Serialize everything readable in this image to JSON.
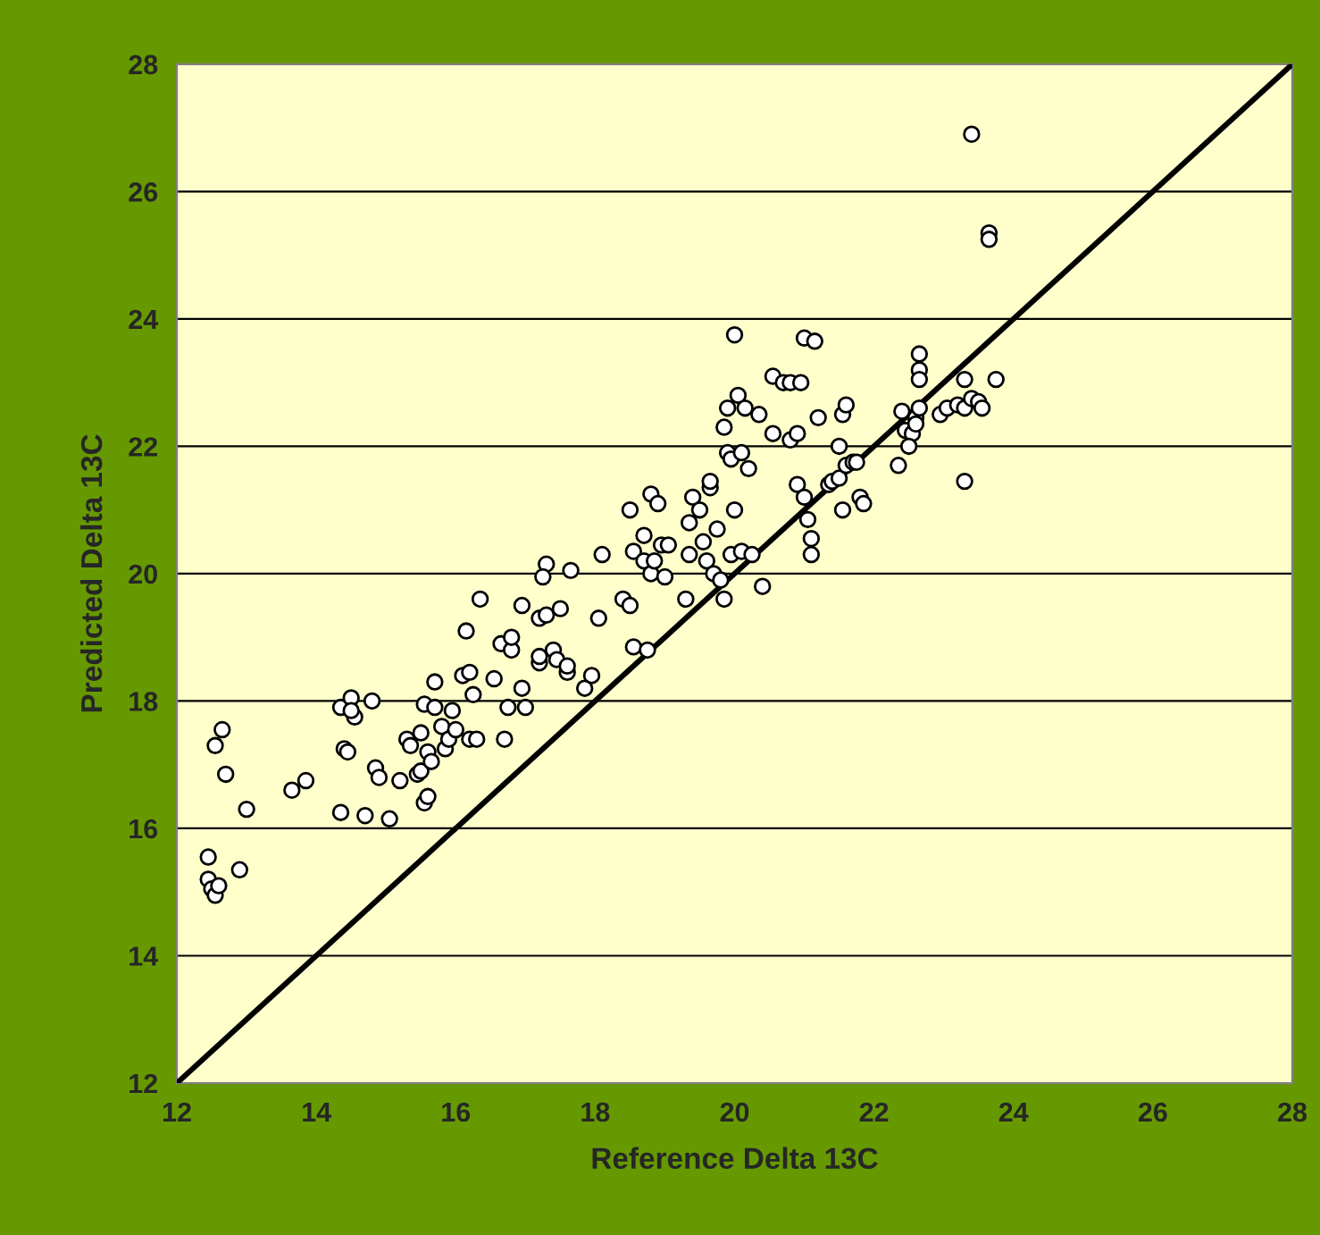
{
  "chart_data": {
    "type": "scatter",
    "xlabel": "Reference Delta 13C",
    "ylabel": "Predicted Delta 13C",
    "xlim": [
      12,
      28
    ],
    "ylim": [
      12,
      28
    ],
    "xticks": [
      12,
      14,
      16,
      18,
      20,
      22,
      24,
      26,
      28
    ],
    "yticks": [
      12,
      14,
      16,
      18,
      20,
      22,
      24,
      26,
      28
    ],
    "grid": "y",
    "series": [
      {
        "marker": "circle",
        "color": "#ffffff",
        "x": [
          12.45,
          12.45,
          12.5,
          12.55,
          12.6,
          12.9,
          12.55,
          12.65,
          12.7,
          13.0,
          13.65,
          13.85,
          14.35,
          14.4,
          14.45,
          14.5,
          14.55,
          14.5,
          14.35,
          14.7,
          14.8,
          14.85,
          14.9,
          15.05,
          15.2,
          15.3,
          15.35,
          15.45,
          15.5,
          15.5,
          15.55,
          15.6,
          15.6,
          15.55,
          15.65,
          15.7,
          15.7,
          15.8,
          15.85,
          15.9,
          15.95,
          16.0,
          16.1,
          16.2,
          16.2,
          16.3,
          16.25,
          16.35,
          16.15,
          16.55,
          16.65,
          16.7,
          16.75,
          16.8,
          16.8,
          16.95,
          16.95,
          17.0,
          17.2,
          17.2,
          17.2,
          17.3,
          17.3,
          17.25,
          17.4,
          17.45,
          17.5,
          17.6,
          17.6,
          17.65,
          17.85,
          17.95,
          18.05,
          18.1,
          18.4,
          18.5,
          18.55,
          18.55,
          18.5,
          18.7,
          18.7,
          18.75,
          18.8,
          18.85,
          18.8,
          18.9,
          18.95,
          19.0,
          19.05,
          19.3,
          19.35,
          19.35,
          19.4,
          19.5,
          19.55,
          19.6,
          19.65,
          19.65,
          19.7,
          19.75,
          19.8,
          19.85,
          19.85,
          19.9,
          19.9,
          19.95,
          19.95,
          20.0,
          20.0,
          20.05,
          20.1,
          20.15,
          20.1,
          20.2,
          20.25,
          20.35,
          20.4,
          20.55,
          20.55,
          20.7,
          20.8,
          20.8,
          20.9,
          20.9,
          20.95,
          21.0,
          21.0,
          21.05,
          21.1,
          21.1,
          21.15,
          21.2,
          21.35,
          21.4,
          21.5,
          21.5,
          21.55,
          21.6,
          21.6,
          21.55,
          21.7,
          21.8,
          21.85,
          21.75,
          22.35,
          22.4,
          22.45,
          22.55,
          22.5,
          22.65,
          22.65,
          22.65,
          22.6,
          22.65,
          22.6,
          22.95,
          23.05,
          23.2,
          23.3,
          23.3,
          23.3,
          23.4,
          23.5,
          23.65,
          23.65,
          23.75,
          23.4,
          23.55
        ],
        "values": [
          15.55,
          15.2,
          15.05,
          14.95,
          15.1,
          15.35,
          17.3,
          17.55,
          16.85,
          16.3,
          16.6,
          16.75,
          17.9,
          17.25,
          17.2,
          18.05,
          17.75,
          17.85,
          16.25,
          16.2,
          18.0,
          16.95,
          16.8,
          16.15,
          16.75,
          17.4,
          17.3,
          16.85,
          17.5,
          16.9,
          16.4,
          16.5,
          17.2,
          17.95,
          17.05,
          18.3,
          17.9,
          17.6,
          17.25,
          17.4,
          17.85,
          17.55,
          18.4,
          18.45,
          17.4,
          17.4,
          18.1,
          19.6,
          19.1,
          18.35,
          18.9,
          17.4,
          17.9,
          18.8,
          19.0,
          19.5,
          18.2,
          17.9,
          18.6,
          18.7,
          19.3,
          19.35,
          20.15,
          19.95,
          18.8,
          18.65,
          19.45,
          18.45,
          18.55,
          20.05,
          18.2,
          18.4,
          19.3,
          20.3,
          19.6,
          19.5,
          18.85,
          20.35,
          21.0,
          20.2,
          20.6,
          18.8,
          20.0,
          20.2,
          21.25,
          21.1,
          20.45,
          19.95,
          20.45,
          19.6,
          20.3,
          20.8,
          21.2,
          21.0,
          20.5,
          20.2,
          21.35,
          21.45,
          20.0,
          20.7,
          19.9,
          19.6,
          22.3,
          21.9,
          22.6,
          20.3,
          21.8,
          23.75,
          21.0,
          22.8,
          20.35,
          22.6,
          21.9,
          21.65,
          20.3,
          22.5,
          19.8,
          23.1,
          22.2,
          23.0,
          23.0,
          22.1,
          22.2,
          21.4,
          23.0,
          21.2,
          23.7,
          20.85,
          20.55,
          20.3,
          23.65,
          22.45,
          21.4,
          21.45,
          21.5,
          22.0,
          22.5,
          22.65,
          21.7,
          21.0,
          21.75,
          21.2,
          21.1,
          21.75,
          21.7,
          22.55,
          22.25,
          22.2,
          22.0,
          23.45,
          23.2,
          23.05,
          22.45,
          22.6,
          22.35,
          22.5,
          22.6,
          22.65,
          22.6,
          21.45,
          23.05,
          22.75,
          22.7,
          25.35,
          25.25,
          23.05,
          26.9,
          22.6
        ]
      },
      {
        "type": "line",
        "marker": "none",
        "color": "#000000",
        "x": [
          12,
          28
        ],
        "values": [
          12,
          28
        ]
      }
    ]
  }
}
